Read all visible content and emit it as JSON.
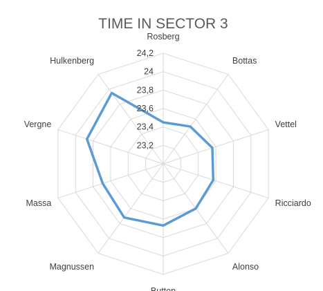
{
  "chart_data": {
    "type": "radar",
    "title": "TIME IN SECTOR 3",
    "categories": [
      "Rosberg",
      "Bottas",
      "Vettel",
      "Ricciardo",
      "Alonso",
      "Button",
      "Magnussen",
      "Massa",
      "Vergne",
      "Hulkenberg"
    ],
    "series": [
      {
        "values": [
          23.45,
          23.5,
          23.56,
          23.57,
          23.6,
          23.67,
          23.72,
          23.69,
          23.87,
          23.95
        ],
        "color": "#5B9BD5"
      }
    ],
    "r_ticks": [
      "23,2",
      "23,4",
      "23,6",
      "23,8",
      "24",
      "24,2"
    ],
    "r_tick_values": [
      23.2,
      23.4,
      23.6,
      23.8,
      24.0,
      24.2
    ],
    "r_range": [
      23.0,
      24.2
    ],
    "grid": true,
    "grid_color": "#d9d9d9",
    "legend": "none"
  }
}
